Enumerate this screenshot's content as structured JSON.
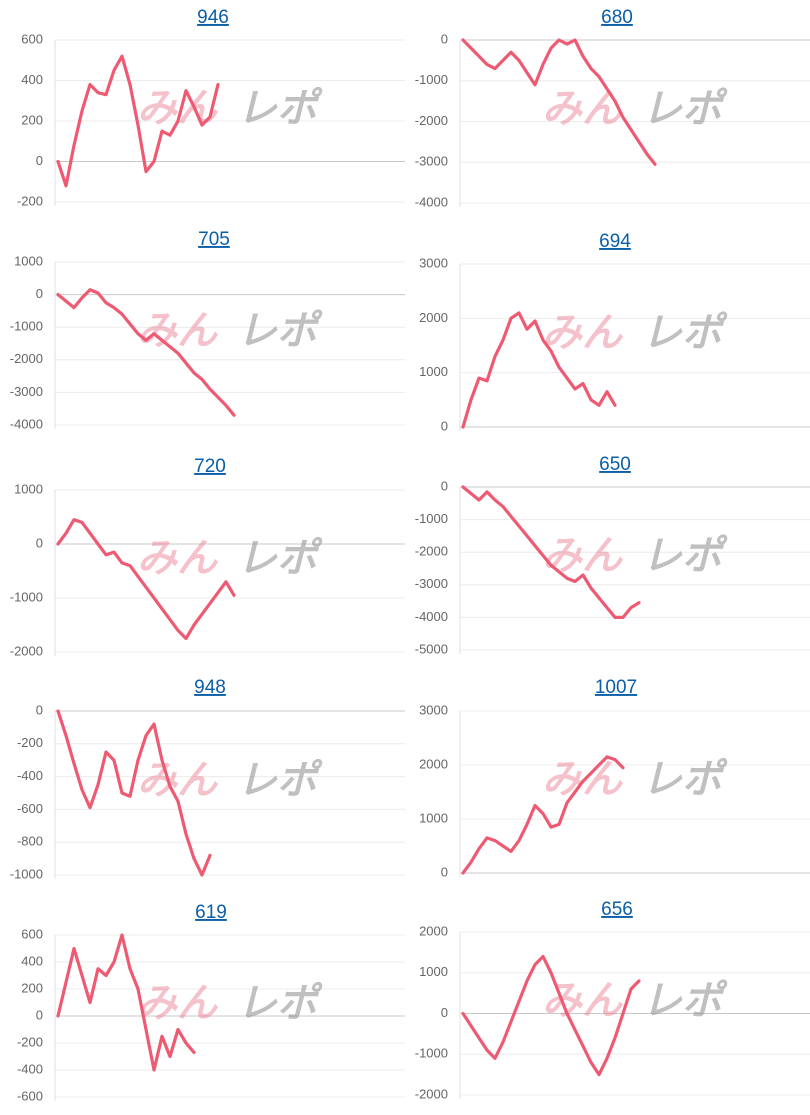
{
  "chart_data": [
    {
      "type": "line",
      "title": "946",
      "color": "#ef5a73",
      "ylim": [
        -200,
        600
      ],
      "yticks": [
        -200,
        0,
        200,
        400,
        600
      ],
      "values": [
        0,
        -120,
        80,
        250,
        380,
        340,
        330,
        450,
        520,
        380,
        180,
        -50,
        0,
        150,
        130,
        200,
        350,
        270,
        180,
        220,
        380
      ]
    },
    {
      "type": "line",
      "title": "680",
      "color": "#ef5a73",
      "ylim": [
        -4000,
        0
      ],
      "yticks": [
        -4000,
        -3000,
        -2000,
        -1000,
        0
      ],
      "values": [
        0,
        -200,
        -400,
        -600,
        -700,
        -500,
        -300,
        -500,
        -800,
        -1100,
        -600,
        -200,
        0,
        -100,
        0,
        -400,
        -700,
        -900,
        -1200,
        -1500,
        -1900,
        -2200,
        -2500,
        -2800,
        -3050
      ]
    },
    {
      "type": "line",
      "title": "705",
      "color": "#ef5a73",
      "ylim": [
        -4000,
        1000
      ],
      "yticks": [
        -4000,
        -3000,
        -2000,
        -1000,
        0,
        1000
      ],
      "values": [
        0,
        -200,
        -400,
        -100,
        150,
        50,
        -250,
        -400,
        -600,
        -900,
        -1200,
        -1400,
        -1200,
        -1400,
        -1600,
        -1800,
        -2100,
        -2400,
        -2600,
        -2900,
        -3150,
        -3400,
        -3700
      ]
    },
    {
      "type": "line",
      "title": "694",
      "color": "#ef5a73",
      "ylim": [
        0,
        3000
      ],
      "yticks": [
        0,
        1000,
        2000,
        3000
      ],
      "values": [
        0,
        500,
        900,
        850,
        1300,
        1600,
        2000,
        2100,
        1800,
        1950,
        1600,
        1400,
        1100,
        900,
        700,
        800,
        500,
        400,
        650,
        400
      ]
    },
    {
      "type": "line",
      "title": "720",
      "color": "#ef5a73",
      "ylim": [
        -2000,
        1000
      ],
      "yticks": [
        -2000,
        -1000,
        0,
        1000
      ],
      "values": [
        0,
        200,
        450,
        400,
        200,
        0,
        -200,
        -150,
        -350,
        -400,
        -600,
        -800,
        -1000,
        -1200,
        -1400,
        -1600,
        -1750,
        -1500,
        -1300,
        -1100,
        -900,
        -700,
        -950
      ]
    },
    {
      "type": "line",
      "title": "650",
      "color": "#ef5a73",
      "ylim": [
        -5000,
        0
      ],
      "yticks": [
        -5000,
        -4000,
        -3000,
        -2000,
        -1000,
        0
      ],
      "values": [
        0,
        -200,
        -400,
        -150,
        -400,
        -600,
        -900,
        -1200,
        -1500,
        -1800,
        -2100,
        -2400,
        -2600,
        -2800,
        -2900,
        -2700,
        -3100,
        -3400,
        -3700,
        -4000,
        -4000,
        -3700,
        -3550
      ]
    },
    {
      "type": "line",
      "title": "948",
      "color": "#ef5a73",
      "ylim": [
        -1000,
        0
      ],
      "yticks": [
        -1000,
        -800,
        -600,
        -400,
        -200,
        0
      ],
      "values": [
        0,
        -150,
        -320,
        -480,
        -590,
        -450,
        -250,
        -300,
        -500,
        -520,
        -300,
        -150,
        -80,
        -300,
        -460,
        -550,
        -750,
        -900,
        -1000,
        -880
      ]
    },
    {
      "type": "line",
      "title": "1007",
      "color": "#ef5a73",
      "ylim": [
        0,
        3000
      ],
      "yticks": [
        0,
        1000,
        2000,
        3000
      ],
      "values": [
        0,
        200,
        450,
        650,
        600,
        500,
        400,
        600,
        900,
        1250,
        1100,
        850,
        900,
        1300,
        1500,
        1700,
        1850,
        2000,
        2150,
        2100,
        1950
      ]
    },
    {
      "type": "line",
      "title": "619",
      "color": "#ef5a73",
      "ylim": [
        -600,
        600
      ],
      "yticks": [
        -600,
        -400,
        -200,
        0,
        200,
        400,
        600
      ],
      "values": [
        0,
        250,
        500,
        300,
        100,
        350,
        300,
        400,
        600,
        350,
        200,
        -100,
        -400,
        -150,
        -300,
        -100,
        -200,
        -270
      ]
    },
    {
      "type": "line",
      "title": "656",
      "color": "#ef5a73",
      "ylim": [
        -2000,
        2000
      ],
      "yticks": [
        -2000,
        -1000,
        0,
        1000,
        2000
      ],
      "values": [
        0,
        -300,
        -600,
        -900,
        -1100,
        -700,
        -200,
        300,
        800,
        1200,
        1400,
        1000,
        500,
        0,
        -400,
        -800,
        -1200,
        -1500,
        -1100,
        -600,
        0,
        600,
        800
      ]
    }
  ],
  "watermark": [
    "みん",
    "レポ"
  ]
}
